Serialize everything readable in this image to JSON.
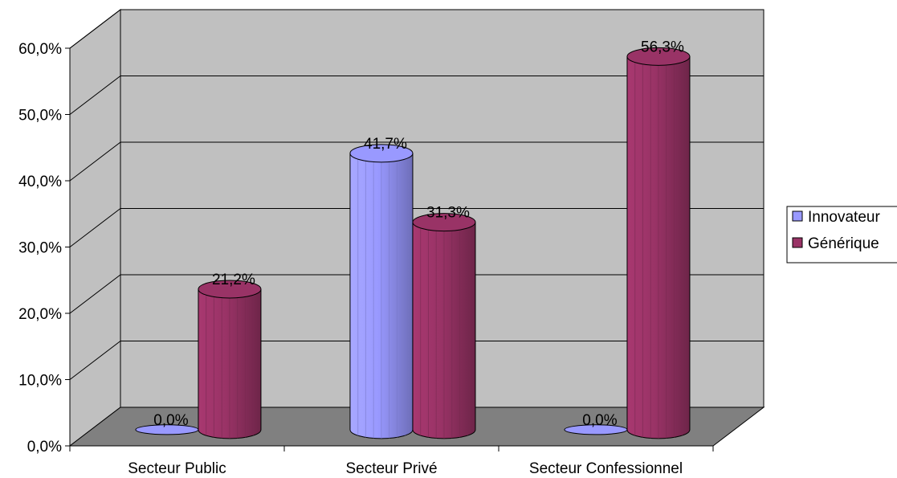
{
  "chart_data": {
    "type": "bar",
    "style": "3d-cylinder",
    "categories": [
      "Secteur Public",
      "Secteur Privé",
      "Secteur Confessionnel"
    ],
    "series": [
      {
        "name": "Innovateur",
        "values": [
          0.0,
          41.7,
          0.0
        ],
        "color": "#9999FF"
      },
      {
        "name": "Générique",
        "values": [
          21.2,
          31.3,
          56.3
        ],
        "color": "#993366"
      }
    ],
    "data_labels": [
      [
        "0,0%",
        "41,7%",
        "0,0%"
      ],
      [
        "21,2%",
        "31,3%",
        "56,3%"
      ]
    ],
    "yticks": [
      "0,0%",
      "10,0%",
      "20,0%",
      "30,0%",
      "40,0%",
      "50,0%",
      "60,0%"
    ],
    "ylim": [
      0,
      60
    ],
    "grid": true,
    "legend_position": "right",
    "wall_color": "#C0C0C0",
    "floor_color": "#808080"
  }
}
